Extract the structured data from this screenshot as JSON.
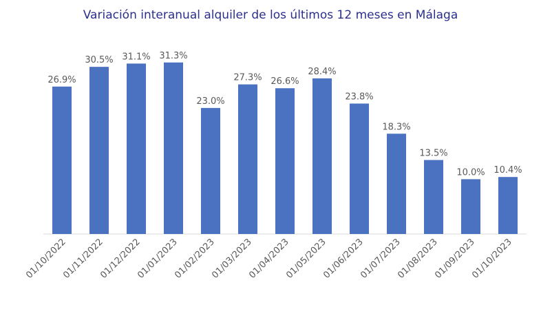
{
  "chart_data": {
    "type": "bar",
    "title": "Variación interanual alquiler de los últimos 12 meses en Málaga",
    "categories": [
      "01/10/2022",
      "01/11/2022",
      "01/12/2022",
      "01/01/2023",
      "01/02/2023",
      "01/03/2023",
      "01/04/2023",
      "01/05/2023",
      "01/06/2023",
      "01/07/2023",
      "01/08/2023",
      "01/09/2023",
      "01/10/2023"
    ],
    "values": [
      26.9,
      30.5,
      31.1,
      31.3,
      23.0,
      27.3,
      26.6,
      28.4,
      23.8,
      18.3,
      13.5,
      10.0,
      10.4
    ],
    "data_labels": [
      "26.9%",
      "30.5%",
      "31.1%",
      "31.3%",
      "23.0%",
      "27.3%",
      "26.6%",
      "28.4%",
      "23.8%",
      "18.3%",
      "13.5%",
      "10.0%",
      "10.4%"
    ],
    "xlabel": "",
    "ylabel": "",
    "ylim": [
      0,
      42.7
    ],
    "grid": false,
    "legend": "none",
    "bar_color": "#4a72c0",
    "title_color": "#2a2f8c"
  }
}
